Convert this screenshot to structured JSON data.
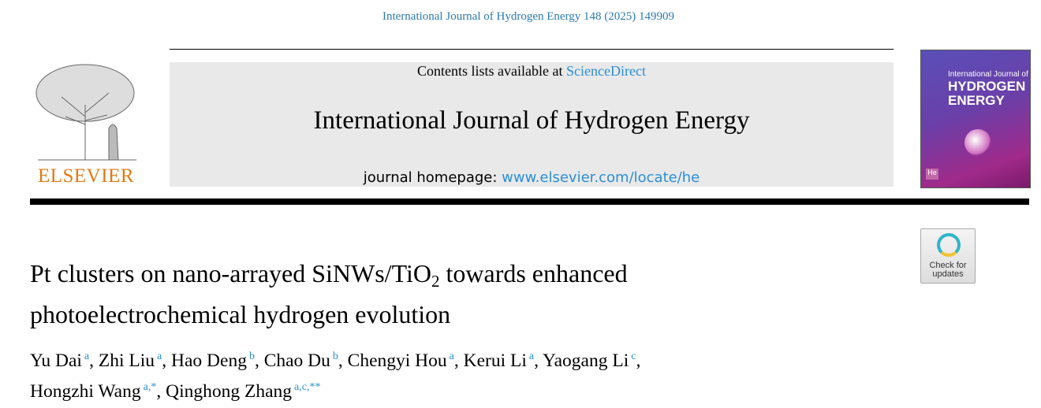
{
  "header": {
    "citation": "International Journal of Hydrogen Energy 148 (2025) 149909"
  },
  "publisher": {
    "logo_text": "ELSEVIER"
  },
  "banner": {
    "contents_prefix": "Contents lists available at ",
    "contents_link": "ScienceDirect",
    "journal_title": "International Journal of Hydrogen Energy",
    "homepage_prefix": "journal homepage: ",
    "homepage_link": "www.elsevier.com/locate/he"
  },
  "cover": {
    "line1": "International Journal of",
    "line2": "HYDROGEN",
    "line3": "ENERGY",
    "badge": "He"
  },
  "check_updates": {
    "line1": "Check for",
    "line2": "updates"
  },
  "article": {
    "title_part1": "Pt clusters on nano-arrayed SiNWs/TiO",
    "title_sub": "2",
    "title_part2": " towards enhanced",
    "title_line2": "photoelectrochemical hydrogen evolution",
    "authors": [
      {
        "name": "Yu Dai",
        "aff": "a"
      },
      {
        "name": "Zhi Liu",
        "aff": "a"
      },
      {
        "name": "Hao Deng",
        "aff": "b"
      },
      {
        "name": "Chao Du",
        "aff": "b"
      },
      {
        "name": "Chengyi Hou",
        "aff": "a"
      },
      {
        "name": "Kerui Li",
        "aff": "a"
      },
      {
        "name": "Yaogang Li",
        "aff": "c"
      },
      {
        "name": "Hongzhi Wang",
        "aff": "a,*"
      },
      {
        "name": "Qinghong Zhang",
        "aff": "a,c,**"
      }
    ]
  },
  "colors": {
    "link": "#2a8fd6",
    "elsevier_orange": "#e07a12",
    "banner_bg": "#e9e9e9"
  }
}
